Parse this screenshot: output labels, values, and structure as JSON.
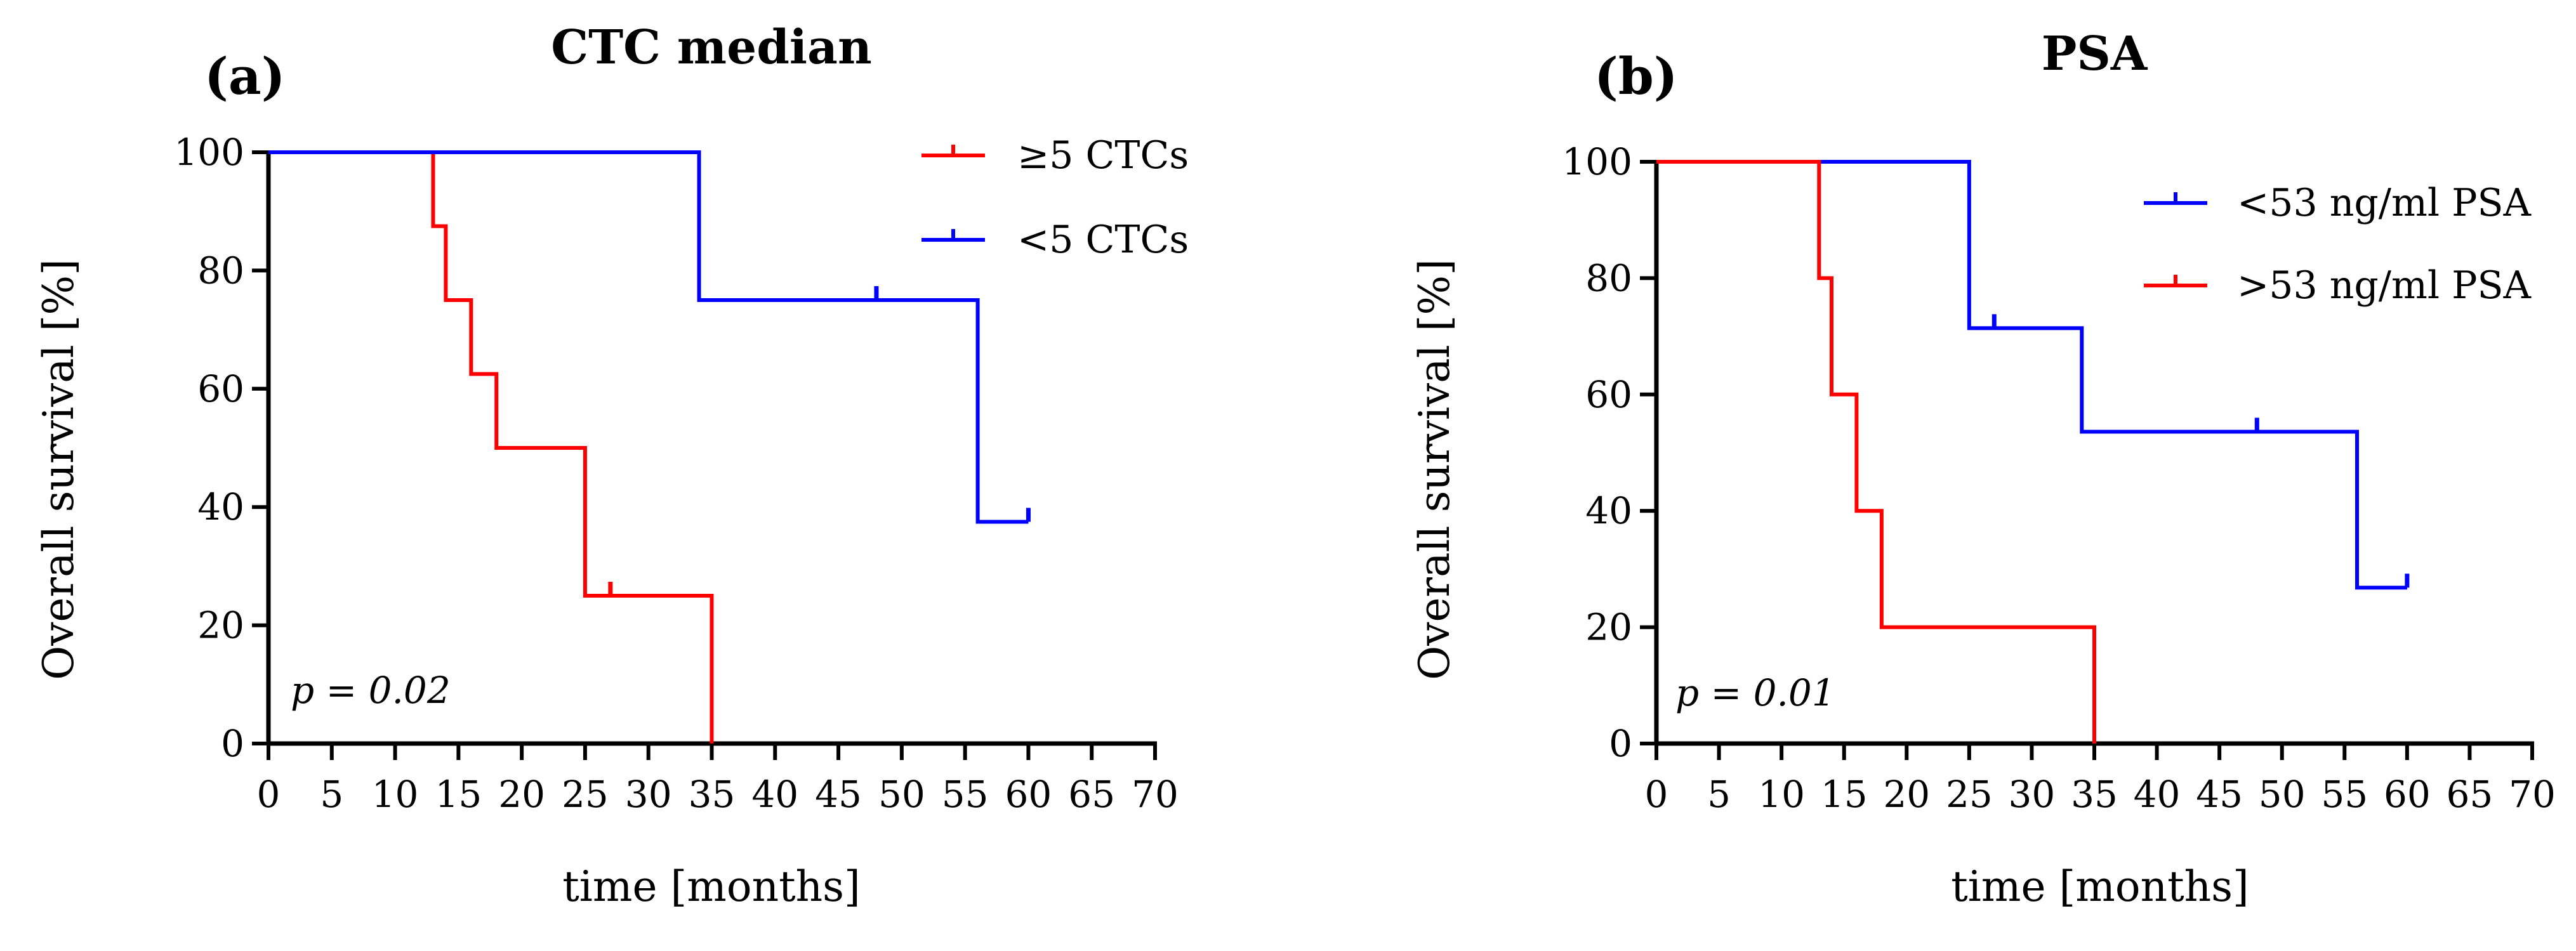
{
  "figure": {
    "panels": [
      {
        "label": "(a)"
      },
      {
        "label": "(b)"
      }
    ]
  },
  "chart_data": [
    {
      "type": "line",
      "subtype": "kaplan-meier",
      "title": "CTC median",
      "xlabel": "time [months]",
      "ylabel": "Overall survival [%]",
      "xlim": [
        0,
        70
      ],
      "ylim": [
        0,
        100
      ],
      "xticks": [
        0,
        5,
        10,
        15,
        20,
        25,
        30,
        35,
        40,
        45,
        50,
        55,
        60,
        65,
        70
      ],
      "yticks": [
        0,
        20,
        40,
        60,
        80,
        100
      ],
      "annotation": "p = 0.02",
      "legend_position": "top-right",
      "series": [
        {
          "name": "≥5 CTCs",
          "color": "#ff0000",
          "steps": [
            [
              0,
              100
            ],
            [
              13,
              87.5
            ],
            [
              14,
              75
            ],
            [
              16,
              62.5
            ],
            [
              18,
              50
            ],
            [
              25,
              25
            ],
            [
              35,
              0
            ]
          ],
          "end_x": 35,
          "censored": [
            [
              27,
              25
            ]
          ]
        },
        {
          "name": "<5 CTCs",
          "color": "#0000ff",
          "steps": [
            [
              0,
              100
            ],
            [
              34,
              75
            ],
            [
              56,
              37.5
            ]
          ],
          "end_x": 60,
          "censored": [
            [
              48,
              75
            ],
            [
              60,
              37.5
            ]
          ]
        }
      ]
    },
    {
      "type": "line",
      "subtype": "kaplan-meier",
      "title": "PSA",
      "xlabel": "time [months]",
      "ylabel": "Overall survival [%]",
      "xlim": [
        0,
        70
      ],
      "ylim": [
        0,
        100
      ],
      "xticks": [
        0,
        5,
        10,
        15,
        20,
        25,
        30,
        35,
        40,
        45,
        50,
        55,
        60,
        65,
        70
      ],
      "yticks": [
        0,
        20,
        40,
        60,
        80,
        100
      ],
      "annotation": "p = 0.01",
      "legend_position": "top-right",
      "series": [
        {
          "name": "<53 ng/ml PSA",
          "color": "#0000ff",
          "steps": [
            [
              0,
              100
            ],
            [
              25,
              71.4
            ],
            [
              34,
              53.6
            ],
            [
              56,
              26.8
            ]
          ],
          "end_x": 60,
          "censored": [
            [
              27,
              71.4
            ],
            [
              48,
              53.6
            ],
            [
              60,
              26.8
            ]
          ]
        },
        {
          "name": ">53 ng/ml PSA",
          "color": "#ff0000",
          "steps": [
            [
              0,
              100
            ],
            [
              13,
              80
            ],
            [
              14,
              60
            ],
            [
              16,
              40
            ],
            [
              18,
              20
            ],
            [
              35,
              0
            ]
          ],
          "end_x": 35,
          "censored": []
        }
      ]
    }
  ]
}
